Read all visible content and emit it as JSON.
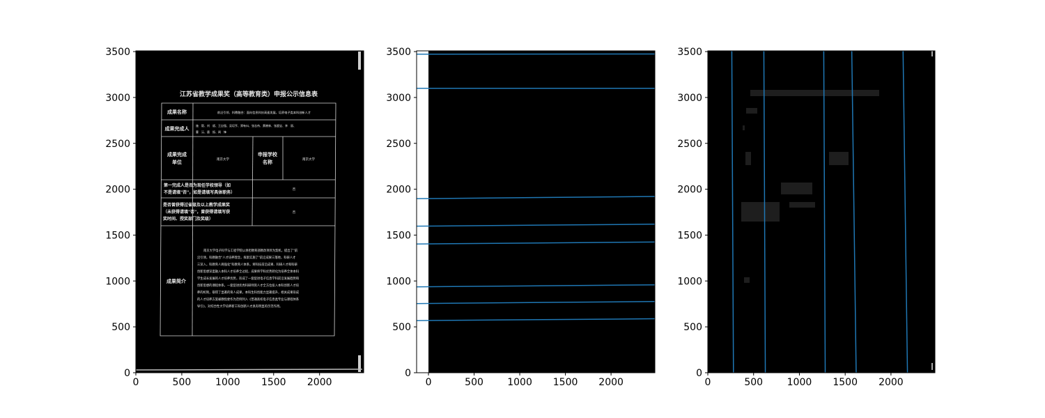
{
  "figure": {
    "background": "#ffffff",
    "image_background": "#000000",
    "line_color": "#1f77b4"
  },
  "document": {
    "title": "江苏省教学成果奖（高等教育类）申报公示信息表",
    "rows": {
      "name_label": "成果名称",
      "name_value": "前沿引领、科教融合：面向信息科技高速发展，培养电子类本科创新人才",
      "members_label": "成果完成人",
      "members_line1": "施　毅、刘　斌、王自强、吴培亨、郑有炓、张志伟、黄晓林、张超宝、李　丽、",
      "members_line2": "曹　沅、唐　振、闻　锋",
      "unit_label_1": "成果完成",
      "unit_label_2": "单位",
      "unit_value": "南京大学",
      "school_label_1": "申报学校",
      "school_label_2": "名称",
      "school_value": "南京大学",
      "leader_q1": "第一完成人是否为现任学校领导（如",
      "leader_q2": "不是请填\"否\"，如是请填写具体职务）",
      "leader_a": "否",
      "award_q1": "是否曾获得过省级及以上教学成果奖",
      "award_q2": "（未获得请填\"否\"，曾获得请填写获",
      "award_q3": "奖时间、授奖部门及奖级）",
      "award_a": "否",
      "intro_label": "成果简介",
      "intro_lines": [
        "南京大学电子科学与工程学院以承担教育部教改项目为契机，提出了\"前",
        "沿引领，科教融合\"人才培养理念，探索实施了\"前沿成果三落地，科研人才",
        "三深入，科教育人两强化\"科教育人体系，将科技前沿成果、科研人才和科研",
        "创新思想深度融入本科人才培养全过程，成果将学科优势转化为培养全体本科",
        "学生成长发展的人才培养优势，形成了一套促进电子信息学科前沿发展趋势和",
        "创新思想的课程体系，一套促进优秀科研师资人才全方位投入本科创新人才培",
        "养的机制，取得了显著的育人成果，本科生科创能力显著提升，相关成果形成",
        "的人才培养方案被教指委作为范例列入《普通高校电子信息类专业与课程体系",
        "导引》，对综合性大学培养新工科创新人才具有明显的示范作用。"
      ]
    }
  },
  "chart_data": [
    {
      "type": "image",
      "title": "",
      "xlim": [
        0,
        2480
      ],
      "ylim": [
        3508,
        0
      ],
      "xticks": [
        0,
        500,
        1000,
        1500,
        2000
      ],
      "yticks": [
        0,
        500,
        1000,
        1500,
        2000,
        2500,
        3000,
        3500
      ],
      "xtick_labels": [
        "0",
        "500",
        "1000",
        "1500",
        "2000"
      ],
      "ytick_labels": [
        "0",
        "500",
        "1000",
        "1500",
        "2000",
        "2500",
        "3000",
        "3500"
      ],
      "grid": false
    },
    {
      "type": "line",
      "title": "",
      "xlim": [
        -130,
        2480
      ],
      "ylim": [
        3508,
        0
      ],
      "xticks": [
        0,
        500,
        1000,
        1500,
        2000
      ],
      "yticks": [
        0,
        500,
        1000,
        1500,
        2000,
        2500,
        3000,
        3500
      ],
      "xtick_labels": [
        "0",
        "500",
        "1000",
        "1500",
        "2000"
      ],
      "ytick_labels": [
        "0",
        "500",
        "1000",
        "1500",
        "2000",
        "2500",
        "3000",
        "3500"
      ],
      "grid": false,
      "series": [
        {
          "x": [
            -130,
            2480
          ],
          "y": [
            568,
            588
          ]
        },
        {
          "x": [
            -130,
            2480
          ],
          "y": [
            754,
            776
          ]
        },
        {
          "x": [
            -130,
            2480
          ],
          "y": [
            936,
            958
          ]
        },
        {
          "x": [
            -130,
            2480
          ],
          "y": [
            1403,
            1425
          ]
        },
        {
          "x": [
            -130,
            2480
          ],
          "y": [
            1597,
            1619
          ]
        },
        {
          "x": [
            -130,
            2480
          ],
          "y": [
            1897,
            1921
          ]
        },
        {
          "x": [
            -130,
            2480
          ],
          "y": [
            3100,
            3100
          ]
        },
        {
          "x": [
            -130,
            2480
          ],
          "y": [
            3472,
            3474
          ]
        }
      ]
    },
    {
      "type": "line",
      "title": "",
      "xlim": [
        0,
        2480
      ],
      "ylim": [
        3508,
        0
      ],
      "xticks": [
        0,
        500,
        1000,
        1500,
        2000
      ],
      "yticks": [
        0,
        500,
        1000,
        1500,
        2000,
        2500,
        3000,
        3500
      ],
      "xtick_labels": [
        "0",
        "500",
        "1000",
        "1500",
        "2000"
      ],
      "ytick_labels": [
        "0",
        "500",
        "1000",
        "1500",
        "2000",
        "2500",
        "3000",
        "3500"
      ],
      "grid": false,
      "series": [
        {
          "x": [
            280,
            262
          ],
          "y": [
            0,
            3508
          ]
        },
        {
          "x": [
            628,
            612
          ],
          "y": [
            0,
            3508
          ]
        },
        {
          "x": [
            1282,
            1266
          ],
          "y": [
            0,
            3508
          ]
        },
        {
          "x": [
            1620,
            1572
          ],
          "y": [
            0,
            3508
          ]
        },
        {
          "x": [
            2180,
            2132
          ],
          "y": [
            0,
            3508
          ]
        }
      ]
    }
  ]
}
